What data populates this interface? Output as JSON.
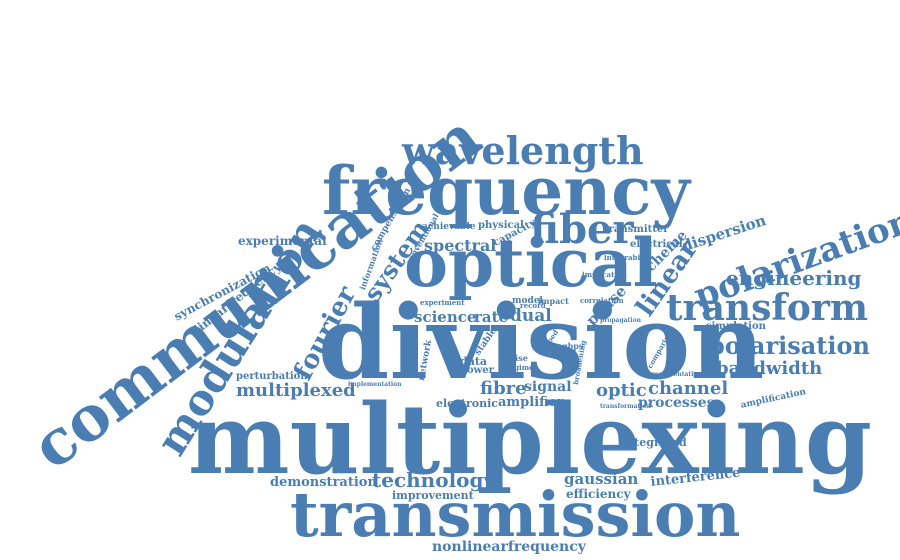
{
  "theme": {
    "word_color": "#4a7eb3",
    "background": "#ffffff"
  },
  "words": {
    "communication": "communication",
    "wavelength": "wavelength",
    "frequency": "frequency",
    "optical": "optical",
    "division": "division",
    "multiplexing": "multiplexing",
    "transmission": "transmission",
    "modulation": "modulation",
    "fourier": "fourier",
    "system": "system",
    "fiber": "fiber",
    "polarization": "polarization",
    "transform": "transform",
    "linear": "linear",
    "engineering": "engineering",
    "polarisation": "polarisation",
    "bandwidth": "bandwidth",
    "multiplexed": "multiplexed",
    "technology": "technology",
    "nonlinearfrequency": "nonlinearfrequency",
    "dispersion": "dispersion",
    "scheme": "scheme",
    "channel": "channel",
    "optic": "optic",
    "processes": "processes",
    "fibre": "fibre",
    "signal": "signal",
    "amplifier": "amplifier",
    "electronic": "electronic",
    "spectral": "spectral",
    "science": "science",
    "rate": "rate",
    "dual": "dual",
    "phase": "phase",
    "experimental": "experimental",
    "synchronization": "synchronization",
    "linearfrequency": "linearfrequency",
    "perturbation": "perturbation",
    "demonstration": "demonstration",
    "improvement": "improvement",
    "gaussian": "gaussian",
    "efficiency": "efficiency",
    "interference": "interference",
    "integrated": "integrated",
    "simulation": "simulation",
    "amplification": "amplification",
    "transmitter": "transmitter",
    "electrical": "electrical",
    "physical": "physical",
    "achievable": "achievable",
    "capacity": "capacity",
    "compensation": "compensation",
    "conventional": "conventional",
    "information": "information",
    "network": "network",
    "data": "data",
    "power": "power",
    "model": "model",
    "noise": "noise",
    "stable": "stable",
    "impact": "impact",
    "gbps": "gbps",
    "integrability": "integrability",
    "implication": "implication",
    "correlation": "correlation",
    "implementation": "implementation",
    "experiment": "experiment",
    "transformation": "transformation",
    "representative": "representative",
    "comparison": "comparison",
    "broadening": "broadening",
    "regime": "regime",
    "doped": "doped",
    "record": "record",
    "propagation": "propagation"
  }
}
